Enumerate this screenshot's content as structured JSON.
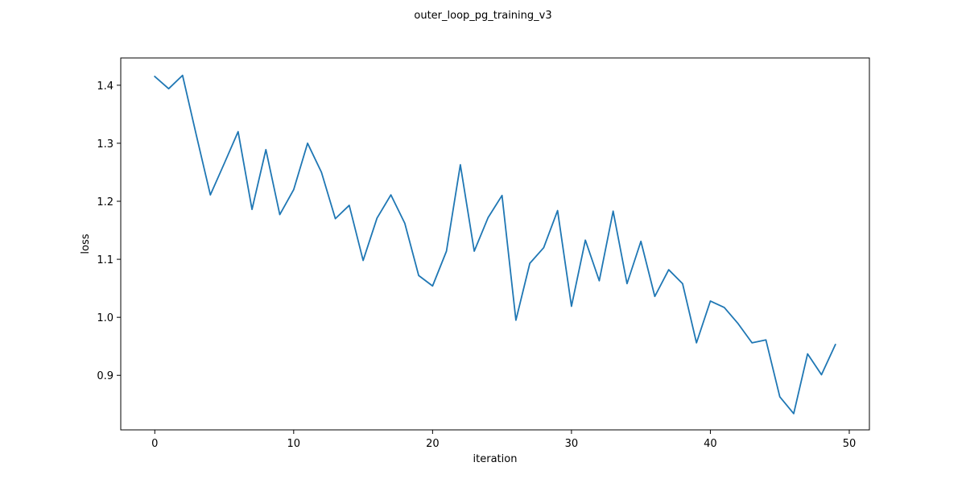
{
  "chart_data": {
    "type": "line",
    "title": "outer_loop_pg_training_v3",
    "xlabel": "iteration",
    "ylabel": "loss",
    "xlim": [
      -2.45,
      51.45
    ],
    "ylim": [
      0.806,
      1.447
    ],
    "x_ticks": [
      0,
      10,
      20,
      30,
      40,
      50
    ],
    "y_ticks": [
      0.9,
      1.0,
      1.1,
      1.2,
      1.3,
      1.4
    ],
    "x_tick_labels": [
      "0",
      "10",
      "20",
      "30",
      "40",
      "50"
    ],
    "y_tick_labels": [
      "0.9",
      "1.0",
      "1.1",
      "1.2",
      "1.3",
      "1.4"
    ],
    "grid": false,
    "line_color": "#1f77b4",
    "x": [
      0,
      1,
      2,
      3,
      4,
      5,
      6,
      7,
      8,
      9,
      10,
      11,
      12,
      13,
      14,
      15,
      16,
      17,
      18,
      19,
      20,
      21,
      22,
      23,
      24,
      25,
      26,
      27,
      28,
      29,
      30,
      31,
      32,
      33,
      34,
      35,
      36,
      37,
      38,
      39,
      40,
      41,
      42,
      43,
      44,
      45,
      46,
      47,
      48,
      49
    ],
    "series": [
      {
        "values": [
          1.415,
          1.394,
          1.417,
          1.313,
          1.211,
          1.265,
          1.32,
          1.186,
          1.289,
          1.177,
          1.22,
          1.3,
          1.25,
          1.17,
          1.193,
          1.098,
          1.171,
          1.211,
          1.162,
          1.072,
          1.054,
          1.114,
          1.263,
          1.114,
          1.172,
          1.21,
          0.995,
          1.093,
          1.12,
          1.184,
          1.019,
          1.133,
          1.063,
          1.183,
          1.058,
          1.131,
          1.036,
          1.082,
          1.058,
          0.956,
          1.028,
          1.017,
          0.989,
          0.956,
          0.961,
          0.863,
          0.834,
          0.937,
          0.901,
          0.953
        ]
      }
    ]
  }
}
